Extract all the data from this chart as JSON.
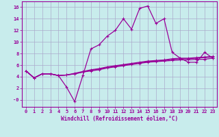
{
  "title": "",
  "xlabel": "Windchill (Refroidissement éolien,°C)",
  "background_color": "#c8ecec",
  "grid_color": "#aaaacc",
  "line_color": "#990099",
  "xlim": [
    -0.5,
    23.5
  ],
  "ylim": [
    -1.2,
    17
  ],
  "xticks": [
    0,
    1,
    2,
    3,
    4,
    5,
    6,
    7,
    8,
    9,
    10,
    11,
    12,
    13,
    14,
    15,
    16,
    17,
    18,
    19,
    20,
    21,
    22,
    23
  ],
  "yticks": [
    0,
    2,
    4,
    6,
    8,
    10,
    12,
    14,
    16
  ],
  "ytick_labels": [
    "-0",
    "2",
    "4",
    "6",
    "8",
    "10",
    "12",
    "14",
    "16"
  ],
  "line1_x": [
    0,
    1,
    2,
    3,
    4,
    5,
    6,
    7,
    8,
    9,
    10,
    11,
    12,
    13,
    14,
    15,
    16,
    17,
    18,
    19,
    20,
    21,
    22,
    23
  ],
  "line1_y": [
    5.0,
    3.8,
    4.5,
    4.5,
    4.2,
    2.2,
    -0.3,
    4.2,
    8.8,
    9.5,
    11.0,
    12.0,
    14.0,
    12.2,
    15.8,
    16.2,
    13.2,
    14.0,
    8.2,
    7.2,
    6.5,
    6.5,
    8.2,
    7.2
  ],
  "line2_x": [
    0,
    1,
    2,
    3,
    4,
    5,
    6,
    7,
    8,
    9,
    10,
    11,
    12,
    13,
    14,
    15,
    16,
    17,
    18,
    19,
    20,
    21,
    22,
    23
  ],
  "line2_y": [
    5.0,
    3.8,
    4.5,
    4.5,
    4.2,
    4.3,
    4.5,
    4.8,
    5.0,
    5.2,
    5.5,
    5.7,
    5.9,
    6.1,
    6.3,
    6.5,
    6.6,
    6.7,
    6.8,
    6.9,
    6.9,
    7.0,
    7.0,
    7.2
  ],
  "line3_x": [
    0,
    1,
    2,
    3,
    4,
    5,
    6,
    7,
    8,
    9,
    10,
    11,
    12,
    13,
    14,
    15,
    16,
    17,
    18,
    19,
    20,
    21,
    22,
    23
  ],
  "line3_y": [
    5.0,
    3.8,
    4.5,
    4.5,
    4.2,
    4.3,
    4.5,
    4.8,
    5.1,
    5.3,
    5.6,
    5.8,
    6.0,
    6.2,
    6.4,
    6.6,
    6.7,
    6.8,
    7.0,
    7.1,
    7.1,
    7.2,
    7.3,
    7.4
  ],
  "line4_x": [
    0,
    1,
    2,
    3,
    4,
    5,
    6,
    7,
    8,
    9,
    10,
    11,
    12,
    13,
    14,
    15,
    16,
    17,
    18,
    19,
    20,
    21,
    22,
    23
  ],
  "line4_y": [
    5.0,
    3.8,
    4.5,
    4.5,
    4.2,
    4.3,
    4.6,
    4.9,
    5.2,
    5.4,
    5.7,
    5.9,
    6.1,
    6.3,
    6.5,
    6.7,
    6.8,
    6.9,
    7.1,
    7.2,
    7.2,
    7.3,
    7.4,
    7.5
  ],
  "tick_fontsize": 5.0,
  "xlabel_fontsize": 5.5
}
